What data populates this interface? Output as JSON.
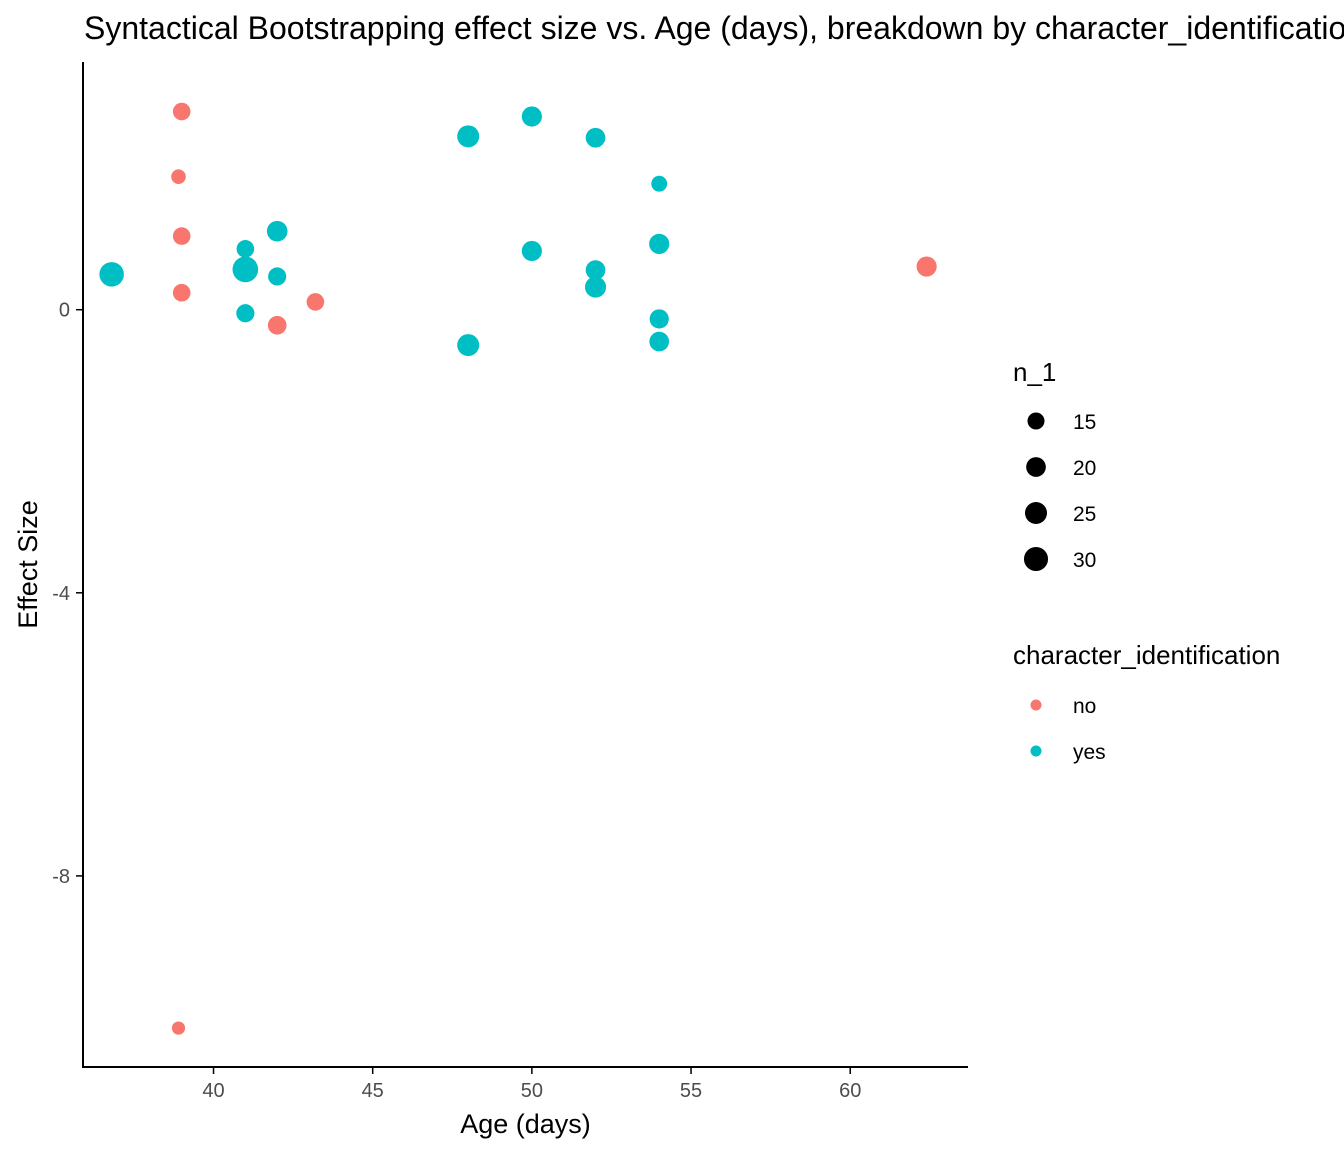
{
  "colors": {
    "no": "#F8766D",
    "yes": "#00BFC4",
    "axis": "#000000",
    "tick_text": "#4d4d4d"
  },
  "chart_data": {
    "type": "scatter",
    "title": "Syntactical Bootstrapping effect size vs. Age (days), breakdown by character_identification",
    "xlabel": "Age (days)",
    "ylabel": "Effect Size",
    "xlim": [
      35.9,
      63.7
    ],
    "ylim": [
      -10.7,
      3.5
    ],
    "x_ticks": [
      40,
      45,
      50,
      55,
      60
    ],
    "y_ticks": [
      -8,
      -4,
      0
    ],
    "grid": false,
    "legend_position": "right",
    "size_legend": {
      "title": "n_1",
      "values": [
        15,
        20,
        25,
        30
      ]
    },
    "color_legend": {
      "title": "character_identification",
      "entries": [
        "no",
        "yes"
      ]
    },
    "series": [
      {
        "name": "no",
        "points": [
          {
            "x": 39.0,
            "y": 2.8,
            "n": 16
          },
          {
            "x": 38.9,
            "y": 1.88,
            "n": 11
          },
          {
            "x": 39.0,
            "y": 1.04,
            "n": 16
          },
          {
            "x": 39.0,
            "y": 0.24,
            "n": 16
          },
          {
            "x": 38.9,
            "y": -10.15,
            "n": 9
          },
          {
            "x": 42.0,
            "y": -0.22,
            "n": 18
          },
          {
            "x": 43.2,
            "y": 0.11,
            "n": 16
          },
          {
            "x": 62.4,
            "y": 0.61,
            "n": 21
          }
        ]
      },
      {
        "name": "yes",
        "points": [
          {
            "x": 36.8,
            "y": 0.5,
            "n": 31
          },
          {
            "x": 41.0,
            "y": 0.86,
            "n": 16
          },
          {
            "x": 41.0,
            "y": 0.57,
            "n": 34
          },
          {
            "x": 41.0,
            "y": -0.05,
            "n": 17
          },
          {
            "x": 42.0,
            "y": 1.11,
            "n": 22
          },
          {
            "x": 42.0,
            "y": 0.47,
            "n": 17
          },
          {
            "x": 48.0,
            "y": 2.45,
            "n": 25
          },
          {
            "x": 48.0,
            "y": -0.5,
            "n": 25
          },
          {
            "x": 50.0,
            "y": 2.73,
            "n": 21
          },
          {
            "x": 50.0,
            "y": 0.83,
            "n": 21
          },
          {
            "x": 52.0,
            "y": 2.43,
            "n": 20
          },
          {
            "x": 52.0,
            "y": 0.56,
            "n": 20
          },
          {
            "x": 52.0,
            "y": 0.32,
            "n": 23
          },
          {
            "x": 54.0,
            "y": 1.78,
            "n": 13
          },
          {
            "x": 54.0,
            "y": 0.93,
            "n": 21
          },
          {
            "x": 54.0,
            "y": -0.13,
            "n": 19
          },
          {
            "x": 54.0,
            "y": -0.45,
            "n": 20
          }
        ]
      }
    ]
  }
}
